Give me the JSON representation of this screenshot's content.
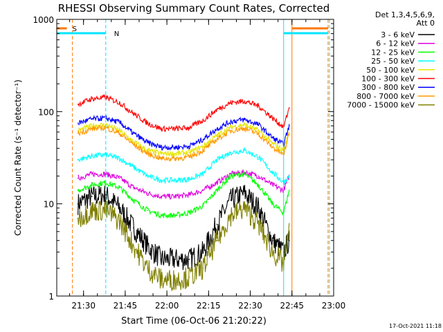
{
  "chart_data": {
    "type": "line",
    "title": "RHESSI Observing Summary Count Rates, Corrected",
    "xlabel": "Start Time (06-Oct-06 21:20:22)",
    "ylabel": "Corrected Count Rate (s⁻¹ detector⁻¹)",
    "x_ticks": [
      "21:30",
      "21:45",
      "22:00",
      "22:15",
      "22:30",
      "22:45",
      "23:00"
    ],
    "x_range": [
      "21:20:22",
      "23:00:00"
    ],
    "y_scale": "log",
    "y_ticks": [
      1,
      10,
      100,
      1000
    ],
    "ylim": [
      1,
      1000
    ],
    "legend_header": [
      "Det 1,3,4,5,6,9,",
      "Att 0"
    ],
    "flags": [
      {
        "label": "S",
        "color": "#ff7700",
        "segments": [
          [
            "21:20:22",
            "21:24:00"
          ],
          [
            "22:45:00",
            "22:58:00"
          ]
        ]
      },
      {
        "label": "N",
        "color": "#00e5ff",
        "segments": [
          [
            "21:20:22",
            "21:38:00"
          ],
          [
            "22:42:00",
            "22:58:00"
          ]
        ]
      }
    ],
    "vlines": [
      {
        "time": "21:26:00",
        "color": "#ff7700",
        "style": "dashed"
      },
      {
        "time": "21:38:00",
        "color": "#00e5ff",
        "style": "dashed"
      },
      {
        "time": "22:42:00",
        "color": "#00e5ff",
        "style": "solid"
      },
      {
        "time": "22:45:00",
        "color": "#ff7700",
        "style": "solid"
      },
      {
        "time": "22:58:00",
        "color": "#ff7700",
        "style": "dashed"
      },
      {
        "time": "22:58:30",
        "color": "#00e5ff",
        "style": "dashed"
      }
    ],
    "x": [
      "21:28",
      "21:33",
      "21:38",
      "21:43",
      "21:48",
      "21:53",
      "21:58",
      "22:03",
      "22:08",
      "22:13",
      "22:18",
      "22:23",
      "22:28",
      "22:33",
      "22:38",
      "22:42",
      "22:44"
    ],
    "series": [
      {
        "name": "3 - 6 keV",
        "color": "#000000",
        "values": [
          10,
          12,
          12.5,
          9,
          5.5,
          3.5,
          2.5,
          2.5,
          2.5,
          3,
          6,
          11,
          13,
          9,
          4,
          3,
          4
        ]
      },
      {
        "name": "6 - 12 keV",
        "color": "#e000e0",
        "values": [
          19,
          21,
          21,
          19,
          15,
          13,
          12,
          12,
          12.5,
          14,
          17,
          21,
          22,
          20,
          16,
          14,
          20
        ]
      },
      {
        "name": "12 - 25 keV",
        "color": "#00ff00",
        "values": [
          14,
          16,
          17,
          15,
          11,
          8.5,
          7.5,
          7.5,
          8,
          9.5,
          14,
          20,
          21,
          16,
          10,
          8,
          14
        ]
      },
      {
        "name": "25 - 50 keV",
        "color": "#00ffff",
        "values": [
          30,
          33,
          34,
          31,
          25,
          20,
          18,
          18,
          18.5,
          21,
          30,
          36,
          38,
          32,
          22,
          17,
          20
        ]
      },
      {
        "name": "50 - 100 keV",
        "color": "#e6e600",
        "values": [
          62,
          70,
          72,
          62,
          47,
          38,
          35,
          35,
          36,
          42,
          55,
          68,
          72,
          62,
          45,
          38,
          60
        ]
      },
      {
        "name": "100 - 300 keV",
        "color": "#ff0000",
        "values": [
          120,
          138,
          142,
          125,
          95,
          75,
          65,
          65,
          67,
          80,
          105,
          125,
          130,
          115,
          85,
          68,
          110
        ]
      },
      {
        "name": "300 - 800 keV",
        "color": "#0000ff",
        "values": [
          75,
          83,
          85,
          76,
          58,
          46,
          41,
          41,
          42,
          50,
          65,
          78,
          82,
          72,
          52,
          44,
          70
        ]
      },
      {
        "name": "800 - 7000 keV",
        "color": "#ff9900",
        "values": [
          58,
          65,
          67,
          58,
          44,
          35,
          31,
          31,
          32,
          38,
          50,
          62,
          66,
          57,
          41,
          34,
          58
        ]
      },
      {
        "name": "7000 - 15000 keV",
        "color": "#808000",
        "values": [
          7,
          8.5,
          8.5,
          6.5,
          3.5,
          2,
          1.5,
          1.5,
          1.6,
          2,
          4,
          7.5,
          9,
          6,
          3,
          2.2,
          5
        ]
      }
    ]
  },
  "footer": {
    "timestamp": "17-Oct-2021 11:18"
  }
}
